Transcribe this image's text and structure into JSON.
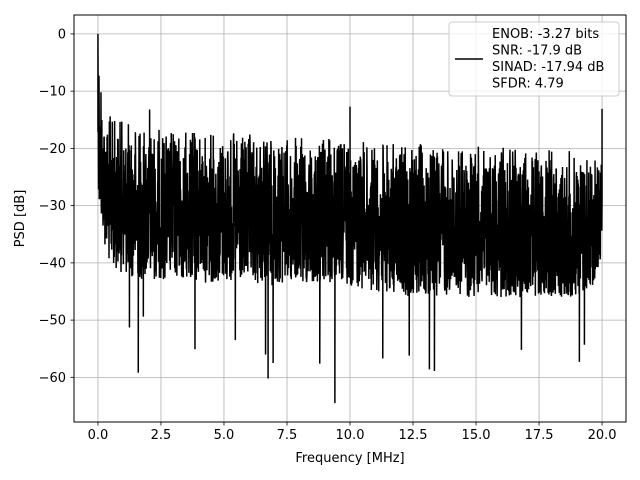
{
  "chart_data": {
    "type": "line",
    "title": "",
    "xlabel": "Frequency [MHz]",
    "ylabel": "PSD [dB]",
    "xlim": [
      -0.95,
      20.95
    ],
    "ylim": [
      -67.8,
      3.3
    ],
    "xticks": [
      0.0,
      2.5,
      5.0,
      7.5,
      10.0,
      12.5,
      15.0,
      17.5,
      20.0
    ],
    "xtick_labels": [
      "0.0",
      "2.5",
      "5.0",
      "7.5",
      "10.0",
      "12.5",
      "15.0",
      "17.5",
      "20.0"
    ],
    "yticks": [
      0,
      -10,
      -20,
      -30,
      -40,
      -50,
      -60
    ],
    "ytick_labels": [
      "0",
      "−10",
      "−20",
      "−30",
      "−40",
      "−50",
      "−60"
    ],
    "grid": true,
    "legend_placement": "top-right",
    "series": [
      {
        "color": "#000000",
        "x": [
          0.0,
          0.05,
          0.1,
          0.2,
          0.3,
          0.4,
          0.5,
          0.75,
          1.0,
          1.5,
          2.0,
          2.5,
          3.0,
          4.0,
          5.0,
          6.0,
          7.5,
          9.0,
          10.0,
          11.0,
          12.5,
          14.0,
          15.0,
          16.5,
          18.0,
          19.5,
          20.0
        ],
        "upper": [
          0,
          -7,
          -10,
          -12,
          -13,
          -14,
          -14,
          -14.5,
          -15,
          -15.5,
          -16,
          -16.5,
          -16.5,
          -17,
          -17,
          -17.5,
          -18,
          -18,
          -18.5,
          -19,
          -19,
          -19.5,
          -19.5,
          -20,
          -20,
          -20.5,
          -20.5
        ],
        "lower": [
          -24,
          -31,
          -33,
          -35,
          -38,
          -40,
          -41,
          -41,
          -42,
          -43,
          -43,
          -43,
          -43,
          -43.5,
          -43.5,
          -44,
          -44,
          -44,
          -44,
          -45,
          -46,
          -46,
          -46,
          -46,
          -46,
          -46,
          -39
        ],
        "spikes_up": [
          {
            "x": 0.0,
            "y": 0
          },
          {
            "x": 0.04,
            "y": -7.3
          },
          {
            "x": 0.12,
            "y": -10.2
          },
          {
            "x": 2.05,
            "y": -13.2
          },
          {
            "x": 10.0,
            "y": -12.7
          },
          {
            "x": 20.0,
            "y": -13.1
          }
        ],
        "spikes_down": [
          {
            "x": 1.25,
            "y": -51.3
          },
          {
            "x": 1.6,
            "y": -59.2
          },
          {
            "x": 1.8,
            "y": -49.4
          },
          {
            "x": 3.85,
            "y": -55.1
          },
          {
            "x": 5.45,
            "y": -53.5
          },
          {
            "x": 6.65,
            "y": -56.0
          },
          {
            "x": 6.75,
            "y": -60.2
          },
          {
            "x": 6.95,
            "y": -57.5
          },
          {
            "x": 8.8,
            "y": -57.6
          },
          {
            "x": 9.4,
            "y": -64.5
          },
          {
            "x": 11.3,
            "y": -56.7
          },
          {
            "x": 12.35,
            "y": -56.2
          },
          {
            "x": 13.15,
            "y": -58.6
          },
          {
            "x": 13.35,
            "y": -58.9
          },
          {
            "x": 16.8,
            "y": -55.2
          },
          {
            "x": 19.1,
            "y": -57.3
          },
          {
            "x": 19.3,
            "y": -54.3
          }
        ]
      }
    ],
    "legend": {
      "lines": [
        "ENOB: -3.27 bits",
        "SNR: -17.9 dB",
        "SINAD: -17.94 dB",
        "SFDR: 4.79"
      ]
    }
  }
}
